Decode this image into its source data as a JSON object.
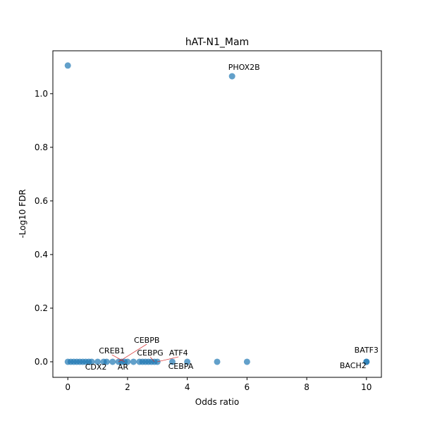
{
  "chart_data": {
    "type": "scatter",
    "title": "hAT-N1_Mam",
    "x_label": "Odds ratio",
    "y_label": "-Log10 FDR",
    "color": "#1f77b4",
    "x": [
      0,
      5.5,
      0,
      0.1,
      0.2,
      0.3,
      0.4,
      0.5,
      0.6,
      0.7,
      0.8,
      1.0,
      1.2,
      1.3,
      1.5,
      1.7,
      1.8,
      1.9,
      2.0,
      2.2,
      2.4,
      2.5,
      2.6,
      2.7,
      2.8,
      2.9,
      3.0,
      3.5,
      4.0,
      5.0,
      6.0,
      10,
      10
    ],
    "y": [
      1.105,
      1.065,
      0,
      0,
      0,
      0,
      0,
      0,
      0,
      0,
      0,
      0,
      0,
      0,
      0,
      0,
      0,
      0,
      0,
      0,
      0,
      0,
      0,
      0,
      0,
      0,
      0,
      0,
      0,
      0,
      0,
      0,
      0
    ],
    "labels": [
      null,
      "PHOX2B",
      null,
      null,
      null,
      null,
      null,
      null,
      null,
      null,
      "CDX2",
      null,
      null,
      null,
      null,
      "CEBPB",
      "AR",
      "CREB1",
      null,
      null,
      null,
      null,
      null,
      null,
      null,
      "CEBPG",
      "ATF4",
      "CEBPA",
      null,
      null,
      null,
      "BATF3",
      "BACH2"
    ],
    "xlim": [
      -0.5,
      10.5
    ],
    "ylim": [
      -0.058,
      1.16
    ],
    "xticks": [
      0,
      2,
      4,
      6,
      8,
      10
    ],
    "yticks": [
      {
        "value": 0,
        "label": "0.0"
      },
      0.2,
      0.4,
      0.6,
      0.8,
      {
        "value": 1,
        "label": "1.0"
      }
    ]
  }
}
